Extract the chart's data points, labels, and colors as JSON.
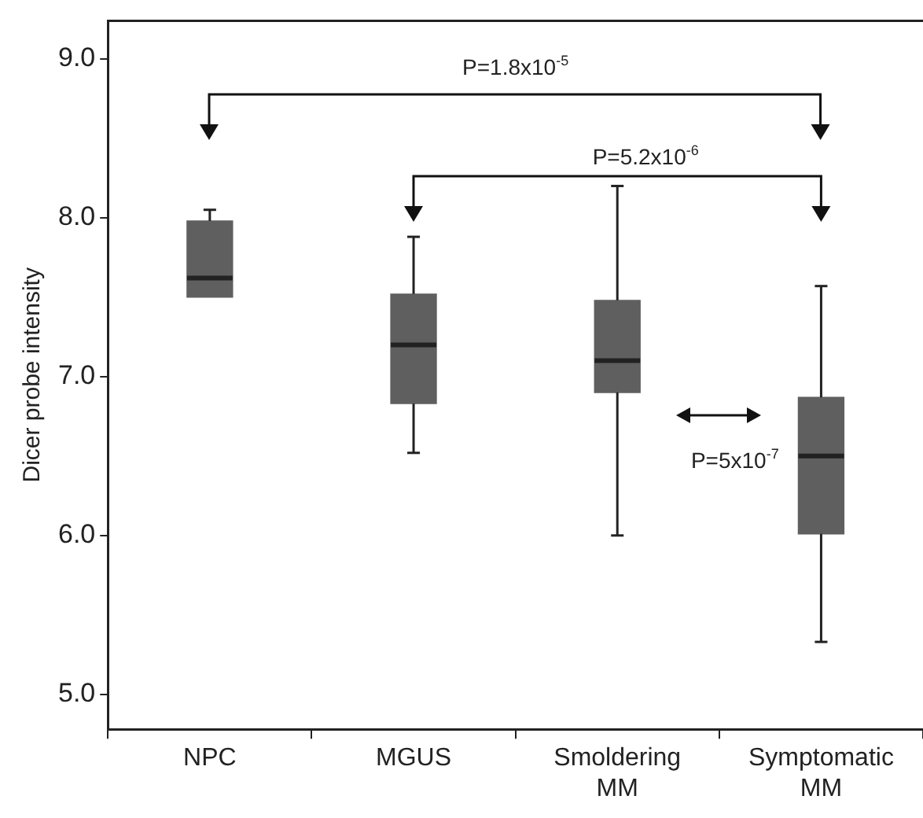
{
  "chart_data": {
    "type": "box",
    "ylabel": "Dicer probe intensity",
    "categories": [
      "NPC",
      "MGUS",
      "Smoldering MM",
      "Symptomatic MM"
    ],
    "series": [
      {
        "color": "#5f5f5f",
        "boxes": [
          {
            "low": 7.5,
            "q1": 7.5,
            "median": 7.62,
            "q3": 7.98,
            "high": 8.05
          },
          {
            "low": 6.52,
            "q1": 6.83,
            "median": 7.2,
            "q3": 7.52,
            "high": 7.88
          },
          {
            "low": 6.0,
            "q1": 6.9,
            "median": 7.1,
            "q3": 7.48,
            "high": 8.2
          },
          {
            "low": 5.33,
            "q1": 6.01,
            "median": 6.5,
            "q3": 6.87,
            "high": 7.57
          }
        ]
      }
    ],
    "ylim": [
      4.78,
      9.24
    ],
    "yticks": [
      {
        "value": 5,
        "label": "5.0"
      },
      {
        "value": 6,
        "label": "6.0"
      },
      {
        "value": 7,
        "label": "7.0"
      },
      {
        "value": 8,
        "label": "8.0"
      },
      {
        "value": 9,
        "label": "9.0"
      }
    ],
    "grid": false,
    "legend": false,
    "annotations": [
      "P=1.8x10$^{-5}$",
      "P=5.2x10$^{-6}$",
      "P=5x10$^{-7}$"
    ]
  }
}
